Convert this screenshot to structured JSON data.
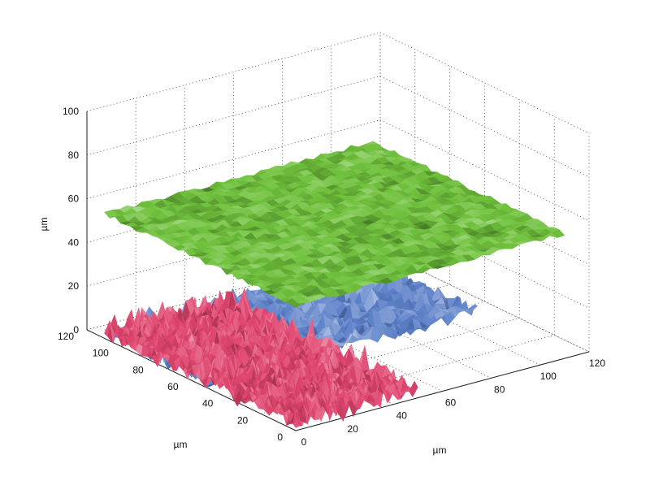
{
  "chart_data": {
    "type": "surface3d",
    "title": "",
    "xlabel": "µm",
    "ylabel": "µm",
    "zlabel": "µm",
    "xlim": [
      0,
      120
    ],
    "ylim": [
      0,
      120
    ],
    "zlim": [
      0,
      100
    ],
    "x_ticks": [
      "0",
      "20",
      "40",
      "60",
      "80",
      "100",
      "120"
    ],
    "y_ticks": [
      "0",
      "20",
      "40",
      "60",
      "80",
      "100",
      "120"
    ],
    "z_ticks": [
      "0",
      "20",
      "40",
      "60",
      "80",
      "100"
    ],
    "grid": true,
    "surfaces": [
      {
        "color": "#6fc13c",
        "x_range": [
          0,
          110
        ],
        "y_range": [
          0,
          110
        ],
        "z_base": 57,
        "z_amplitude": 2
      },
      {
        "color": "#5b7fc8",
        "x_range": [
          0,
          110
        ],
        "y_range": [
          50,
          110
        ],
        "z_base": 2,
        "z_amplitude": 6
      },
      {
        "color": "#e0456e",
        "x_range": [
          0,
          50
        ],
        "y_range": [
          0,
          110
        ],
        "z_base": 3,
        "z_amplitude": 10
      }
    ]
  }
}
